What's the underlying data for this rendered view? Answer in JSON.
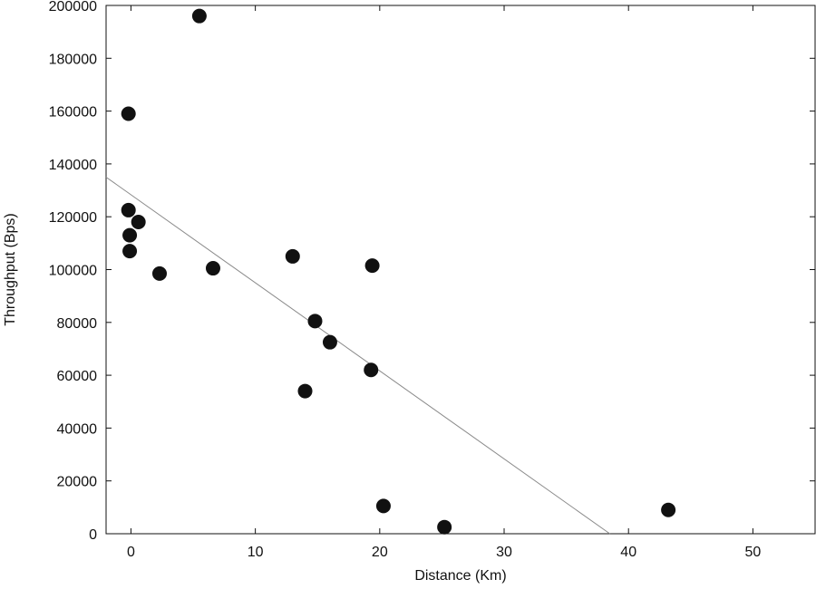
{
  "chart_data": {
    "type": "scatter",
    "title": "",
    "xlabel": "Distance (Km)",
    "ylabel": "Throughput (Bps)",
    "xlim": [
      -2,
      55
    ],
    "ylim": [
      0,
      200000
    ],
    "xticks": [
      0,
      10,
      20,
      30,
      40,
      50
    ],
    "yticks": [
      0,
      20000,
      40000,
      60000,
      80000,
      100000,
      120000,
      140000,
      160000,
      180000,
      200000
    ],
    "grid": false,
    "legend": "none",
    "series": [
      {
        "points": [
          {
            "x": 5.5,
            "y": 196000
          },
          {
            "x": -0.2,
            "y": 159000
          },
          {
            "x": -0.2,
            "y": 122500
          },
          {
            "x": 0.6,
            "y": 118000
          },
          {
            "x": -0.1,
            "y": 113000
          },
          {
            "x": -0.1,
            "y": 107000
          },
          {
            "x": 2.3,
            "y": 98500
          },
          {
            "x": 6.6,
            "y": 100500
          },
          {
            "x": 13.0,
            "y": 105000
          },
          {
            "x": 19.4,
            "y": 101500
          },
          {
            "x": 14.8,
            "y": 80500
          },
          {
            "x": 16.0,
            "y": 72500
          },
          {
            "x": 19.3,
            "y": 62000
          },
          {
            "x": 14.0,
            "y": 54000
          },
          {
            "x": 20.3,
            "y": 10500
          },
          {
            "x": 25.2,
            "y": 2500
          },
          {
            "x": 43.2,
            "y": 9000
          }
        ],
        "color": "#111111"
      }
    ],
    "trendline": {
      "x": [
        -2,
        38.5
      ],
      "y": [
        135000,
        0
      ],
      "color": "#8a8a8a"
    }
  }
}
